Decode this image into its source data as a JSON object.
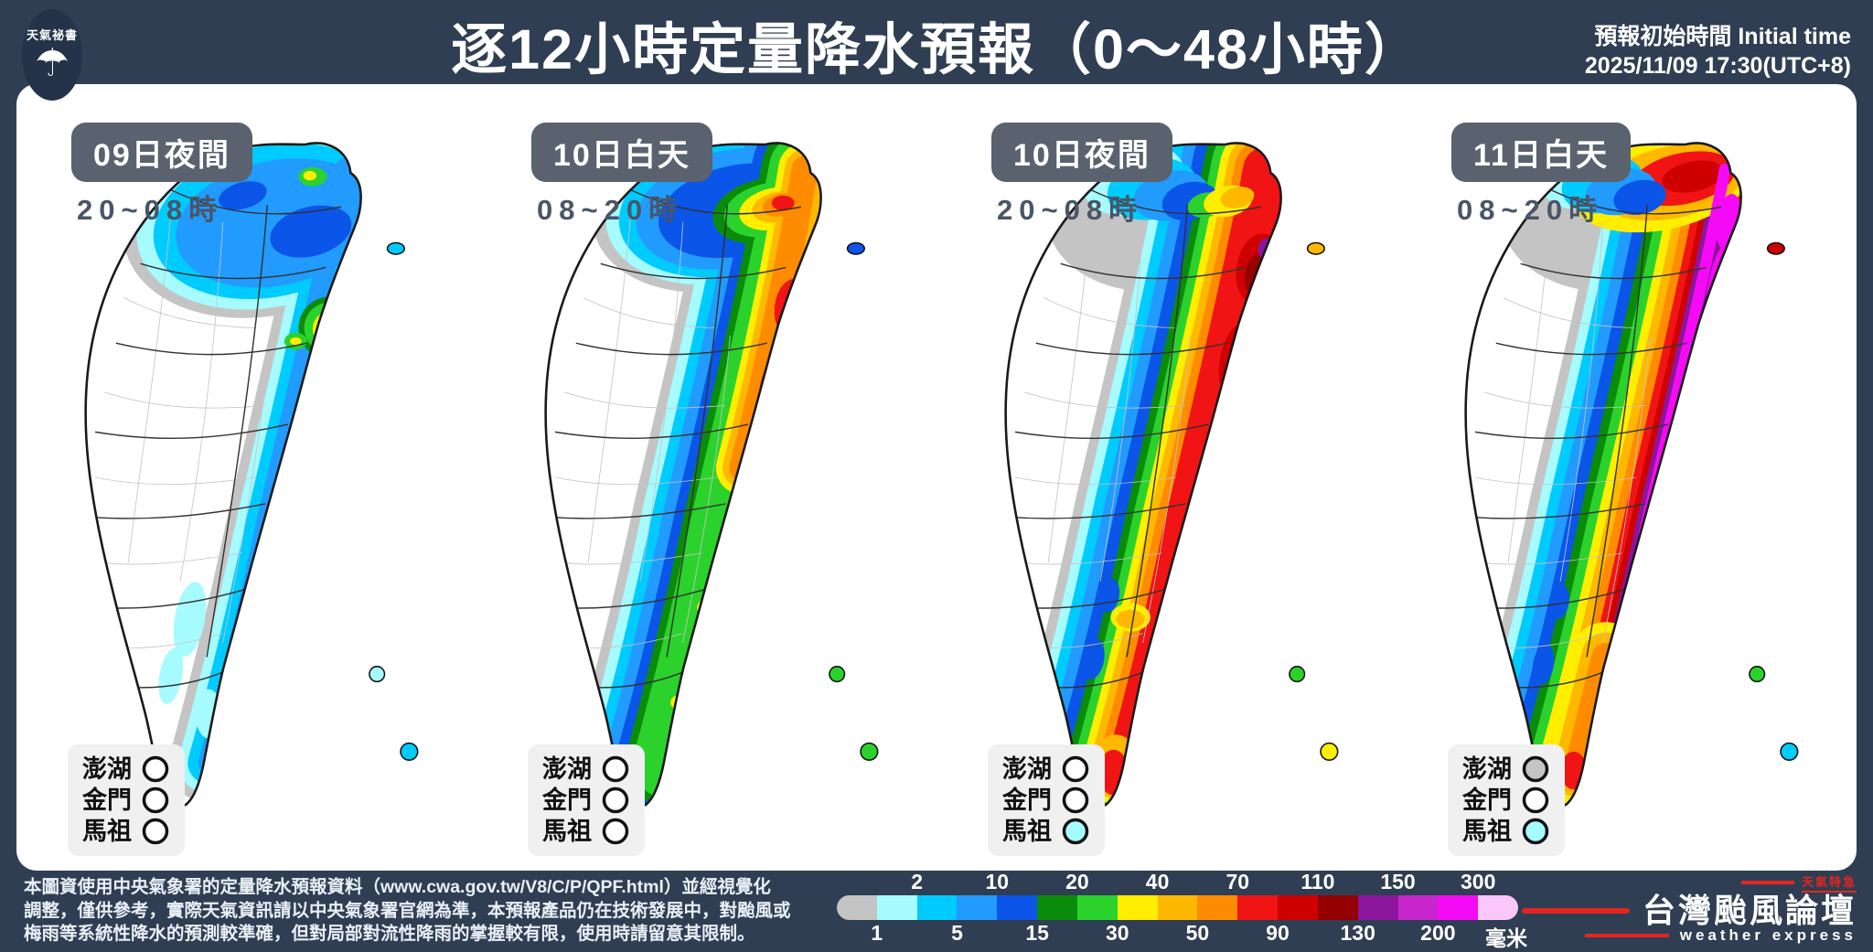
{
  "header": {
    "logo_text": "天氣祕書",
    "logo_icon": "umbrella-icon",
    "title": "逐12小時定量降水預報（0～48小時）",
    "initial_time_label": "預報初始時間 Initial time",
    "initial_time_value": "2025/11/09  17:30(UTC+8)"
  },
  "panels": [
    {
      "badge": "09日夜間",
      "time": "20~08時",
      "islands": [
        {
          "name": "澎湖",
          "color": "#FFFFFF"
        },
        {
          "name": "金門",
          "color": "#FFFFFF"
        },
        {
          "name": "馬祖",
          "color": "#FFFFFF"
        }
      ]
    },
    {
      "badge": "10日白天",
      "time": "08~20時",
      "islands": [
        {
          "name": "澎湖",
          "color": "#FFFFFF"
        },
        {
          "name": "金門",
          "color": "#FFFFFF"
        },
        {
          "name": "馬祖",
          "color": "#FFFFFF"
        }
      ]
    },
    {
      "badge": "10日夜間",
      "time": "20~08時",
      "islands": [
        {
          "name": "澎湖",
          "color": "#FFFFFF"
        },
        {
          "name": "金門",
          "color": "#FFFFFF"
        },
        {
          "name": "馬祖",
          "color": "#A6FBFF"
        }
      ]
    },
    {
      "badge": "11日白天",
      "time": "08~20時",
      "islands": [
        {
          "name": "澎湖",
          "color": "#C4C4C4"
        },
        {
          "name": "金門",
          "color": "#FFFFFF"
        },
        {
          "name": "馬祖",
          "color": "#A6FBFF"
        }
      ]
    }
  ],
  "footer": {
    "disclaimer_lines": [
      "本圖資使用中央氣象署的定量降水預報資料（www.cwa.gov.tw/V8/C/P/QPF.html）並經視覺化",
      "調整，僅供參考，實際天氣資訊請以中央氣象署官網為準，本預報產品仍在技術發展中，對颱風或",
      "梅雨等系統性降水的預測較準確，但對局部對流性降雨的掌握較有限，使用時請留意其限制。"
    ],
    "scale": {
      "unit": "毫米",
      "segments": [
        {
          "range": "trace",
          "color": "#C4C4C4"
        },
        {
          "range": "1-2",
          "color": "#A6FBFF"
        },
        {
          "range": "2-5",
          "color": "#00CBFF"
        },
        {
          "range": "5-10",
          "color": "#229BFF"
        },
        {
          "range": "10-15",
          "color": "#0B55E8"
        },
        {
          "range": "15-20",
          "color": "#0A8C0A"
        },
        {
          "range": "20-30",
          "color": "#2BD22B"
        },
        {
          "range": "30-40",
          "color": "#FFEE00"
        },
        {
          "range": "40-50",
          "color": "#FFB800"
        },
        {
          "range": "50-70",
          "color": "#FF8C00"
        },
        {
          "range": "70-90",
          "color": "#F01414"
        },
        {
          "range": "90-110",
          "color": "#CE0000"
        },
        {
          "range": "110-130",
          "color": "#940000"
        },
        {
          "range": "130-150",
          "color": "#8B169B"
        },
        {
          "range": "150-200",
          "color": "#C726CC"
        },
        {
          "range": "200-300",
          "color": "#F50AF5"
        },
        {
          "range": "300+",
          "color": "#FBC7FB"
        }
      ],
      "labels": [
        {
          "text": "1",
          "boundary": 1,
          "row": "bottom"
        },
        {
          "text": "2",
          "boundary": 2,
          "row": "top"
        },
        {
          "text": "5",
          "boundary": 3,
          "row": "bottom"
        },
        {
          "text": "10",
          "boundary": 4,
          "row": "top"
        },
        {
          "text": "15",
          "boundary": 5,
          "row": "bottom"
        },
        {
          "text": "20",
          "boundary": 6,
          "row": "top"
        },
        {
          "text": "30",
          "boundary": 7,
          "row": "bottom"
        },
        {
          "text": "40",
          "boundary": 8,
          "row": "top"
        },
        {
          "text": "50",
          "boundary": 9,
          "row": "bottom"
        },
        {
          "text": "70",
          "boundary": 10,
          "row": "top"
        },
        {
          "text": "90",
          "boundary": 11,
          "row": "bottom"
        },
        {
          "text": "110",
          "boundary": 12,
          "row": "top"
        },
        {
          "text": "130",
          "boundary": 13,
          "row": "bottom"
        },
        {
          "text": "150",
          "boundary": 14,
          "row": "top"
        },
        {
          "text": "200",
          "boundary": 15,
          "row": "bottom"
        },
        {
          "text": "300",
          "boundary": 16,
          "row": "top"
        }
      ]
    },
    "brand": {
      "tag": "天氣特急",
      "title": "台灣颱風論壇",
      "subtitle": "weather express",
      "accent_color": "#E3261F"
    }
  }
}
